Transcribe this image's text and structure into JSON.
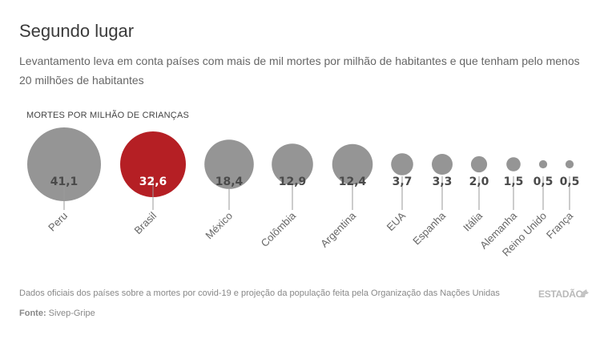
{
  "header": {
    "title": "Segundo lugar",
    "subtitle": "Levantamento leva em conta países com mais de mil mortes por milhão de habitantes e que tenham pelo menos 20 milhões de habitantes"
  },
  "chart_data": {
    "type": "bubble",
    "metric_label": "MORTES POR MILHÃO DE CRIANÇAS",
    "categories": [
      "Peru",
      "Brasil",
      "México",
      "Colômbia",
      "Argentina",
      "EUA",
      "Espanha",
      "Itália",
      "Alemanha",
      "Reino Unido",
      "França"
    ],
    "values": [
      41.1,
      32.6,
      18.4,
      12.9,
      12.4,
      3.7,
      3.3,
      2.0,
      1.5,
      0.5,
      0.5
    ],
    "value_labels": [
      "41,1",
      "32,6",
      "18,4",
      "12,9",
      "12,4",
      "3,7",
      "3,3",
      "2,0",
      "1,5",
      "0,5",
      "0,5"
    ],
    "highlight": "Brasil",
    "colors": {
      "default": "#959595",
      "highlight": "#b51f24",
      "label_dark": "#4a4a4a",
      "label_light": "#ffffff"
    }
  },
  "footer": {
    "note": "Dados oficiais dos países sobre a mortes por covid-19 e projeção da população feita pela Organização das Nações Unidas",
    "source_label": "Fonte:",
    "source_value": "Sivep-Gripe",
    "brand": "ESTADÃO"
  }
}
